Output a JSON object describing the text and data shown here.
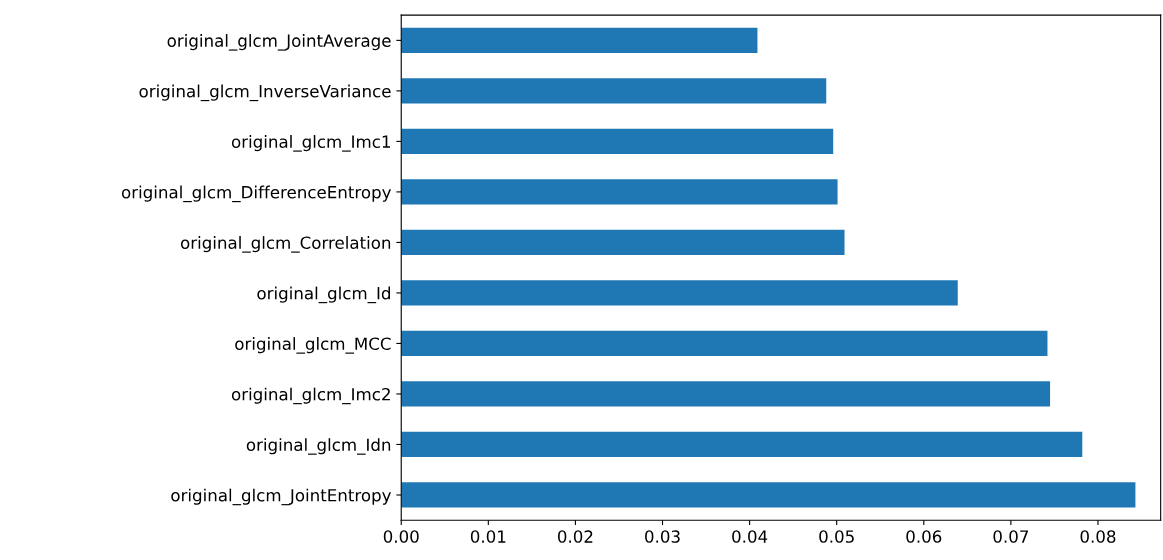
{
  "chart_data": {
    "type": "bar",
    "orientation": "horizontal",
    "categories": [
      "original_glcm_JointAverage",
      "original_glcm_InverseVariance",
      "original_glcm_Imc1",
      "original_glcm_DifferenceEntropy",
      "original_glcm_Correlation",
      "original_glcm_Id",
      "original_glcm_MCC",
      "original_glcm_Imc2",
      "original_glcm_Idn",
      "original_glcm_JointEntropy"
    ],
    "values": [
      0.0409,
      0.0488,
      0.0496,
      0.0501,
      0.0509,
      0.0639,
      0.0742,
      0.0745,
      0.0782,
      0.0843
    ],
    "color": "#1f77b4",
    "xlim": [
      0,
      0.0872
    ],
    "xticks": [
      {
        "value": 0,
        "label": "0.00"
      },
      {
        "value": 0.01,
        "label": "0.01"
      },
      {
        "value": 0.02,
        "label": "0.02"
      },
      {
        "value": 0.03,
        "label": "0.03"
      },
      {
        "value": 0.04,
        "label": "0.04"
      },
      {
        "value": 0.05,
        "label": "0.05"
      },
      {
        "value": 0.06,
        "label": "0.06"
      },
      {
        "value": 0.07,
        "label": "0.07"
      },
      {
        "value": 0.08,
        "label": "0.08"
      }
    ],
    "grid": false,
    "legend": false
  }
}
